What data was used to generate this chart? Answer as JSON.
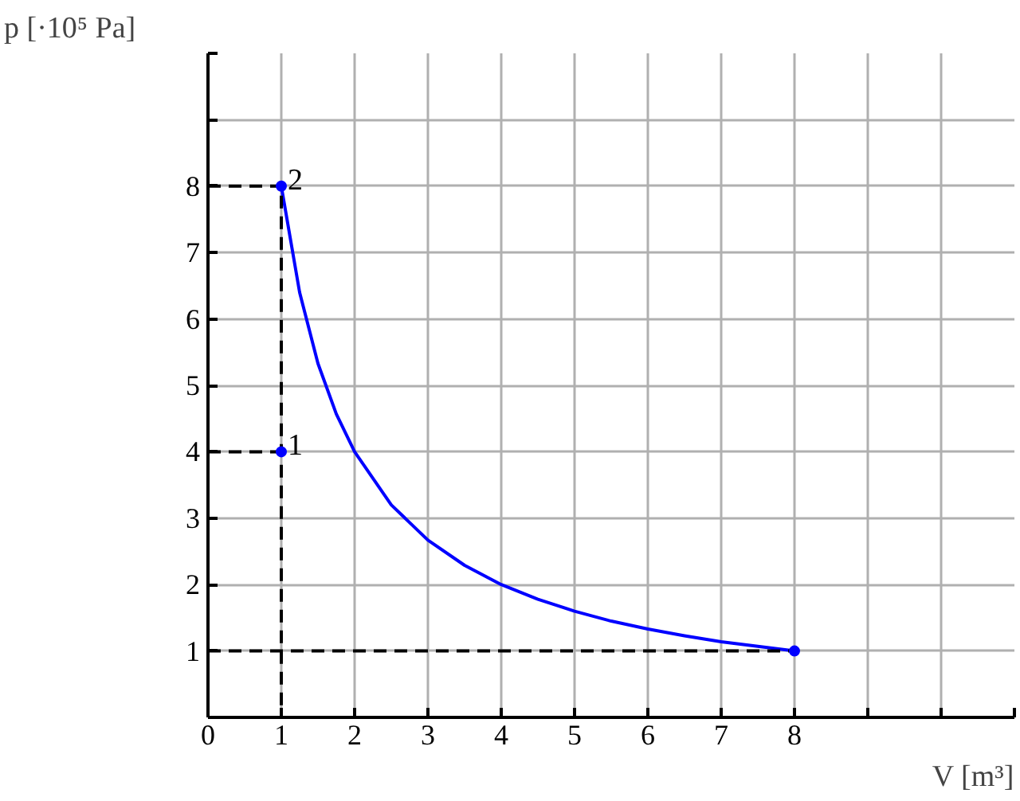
{
  "chart_data": {
    "type": "line",
    "xlabel": "V [m³]",
    "ylabel": "p [·10⁵ Pa]",
    "xlim": [
      0,
      11
    ],
    "ylim": [
      0,
      10
    ],
    "xticks": [
      {
        "value": 0,
        "label": "0"
      },
      1,
      2,
      3,
      4,
      5,
      6,
      7,
      8,
      {
        "value": 9,
        "label": null
      },
      {
        "value": 10,
        "label": null
      },
      {
        "value": 11,
        "label": null
      }
    ],
    "yticks": [
      1,
      2,
      3,
      4,
      5,
      6,
      7,
      8,
      {
        "value": 9,
        "label": null
      },
      {
        "value": 10,
        "label": null
      }
    ],
    "grid": true,
    "series": [
      {
        "color": "#0000ff",
        "line_style": "solid",
        "x": [
          1,
          1.25,
          1.5,
          1.75,
          2,
          2.5,
          3,
          3.5,
          4,
          4.5,
          5,
          5.5,
          6,
          6.5,
          7,
          7.5,
          8
        ],
        "values": [
          8,
          6.4,
          5.33,
          4.57,
          4,
          3.2,
          2.67,
          2.29,
          2,
          1.78,
          1.6,
          1.45,
          1.33,
          1.23,
          1.14,
          1.07,
          1
        ]
      },
      {
        "color": "#000000",
        "line_style": "dashed",
        "x": [
          0,
          1,
          1
        ],
        "values": [
          8,
          8,
          0
        ]
      },
      {
        "color": "#000000",
        "line_style": "dashed",
        "x": [
          0,
          1
        ],
        "values": [
          4,
          4
        ]
      },
      {
        "color": "#000000",
        "line_style": "dashed",
        "x": [
          0,
          8
        ],
        "values": [
          1,
          1
        ]
      },
      {
        "type": "scatter",
        "color": "#0000ff",
        "marker": "circle",
        "x": [
          1,
          1,
          8
        ],
        "values": [
          8,
          4,
          1
        ]
      }
    ],
    "annotations": [
      {
        "text": "1",
        "x": 1,
        "y": 4
      },
      {
        "text": "2",
        "x": 1,
        "y": 8
      }
    ]
  }
}
